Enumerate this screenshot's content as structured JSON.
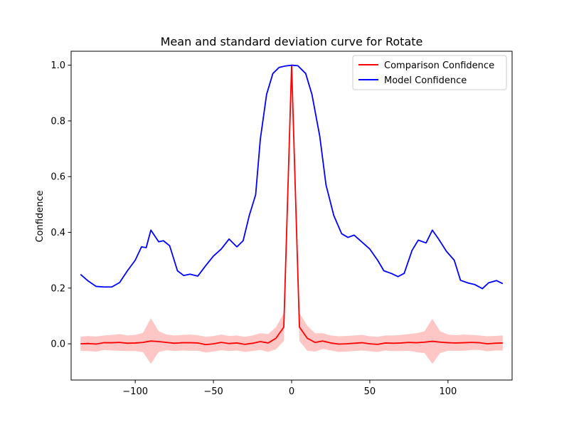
{
  "chart_data": {
    "type": "line",
    "title": "Mean and standard deviation curve for Rotate",
    "xlabel": "",
    "ylabel": "Confidence",
    "xlim": [
      -141,
      141
    ],
    "ylim": [
      -0.13,
      1.05
    ],
    "xticks": [
      -100,
      -50,
      0,
      50,
      100
    ],
    "xtick_labels": [
      "−100",
      "−50",
      "0",
      "50",
      "100"
    ],
    "yticks": [
      0.0,
      0.2,
      0.4,
      0.6,
      0.8,
      1.0
    ],
    "ytick_labels": [
      "0.0",
      "0.2",
      "0.4",
      "0.6",
      "0.8",
      "1.0"
    ],
    "grid": false,
    "legend_position": "top-right",
    "series": [
      {
        "name": "Comparison Confidence",
        "color": "#ff0000",
        "band_color": "#ffb3b3",
        "x": [
          -135,
          -130,
          -125,
          -120,
          -115,
          -110,
          -105,
          -100,
          -95,
          -90,
          -85,
          -80,
          -75,
          -70,
          -65,
          -60,
          -55,
          -50,
          -45,
          -40,
          -35,
          -30,
          -25,
          -20,
          -15,
          -10,
          -5,
          0,
          5,
          10,
          15,
          20,
          25,
          30,
          35,
          40,
          45,
          50,
          55,
          60,
          65,
          70,
          75,
          80,
          85,
          90,
          95,
          100,
          105,
          110,
          115,
          120,
          125,
          130,
          135
        ],
        "values": [
          0.0,
          0.001,
          -0.001,
          0.004,
          0.004,
          0.005,
          0.002,
          0.003,
          0.005,
          0.01,
          0.008,
          0.005,
          0.002,
          0.004,
          0.004,
          0.003,
          -0.003,
          0.0,
          0.005,
          0.001,
          0.003,
          -0.002,
          0.002,
          0.008,
          0.003,
          0.02,
          0.06,
          1.0,
          0.06,
          0.02,
          0.005,
          0.01,
          0.003,
          -0.001,
          0.0,
          0.002,
          0.004,
          0.0,
          -0.002,
          0.003,
          0.002,
          0.003,
          0.005,
          0.004,
          0.006,
          0.009,
          0.006,
          0.004,
          0.003,
          0.004,
          0.005,
          0.004,
          0.0,
          0.002,
          0.003
        ],
        "upper": [
          0.025,
          0.028,
          0.026,
          0.03,
          0.032,
          0.035,
          0.03,
          0.032,
          0.04,
          0.092,
          0.045,
          0.033,
          0.03,
          0.032,
          0.033,
          0.031,
          0.025,
          0.028,
          0.033,
          0.028,
          0.03,
          0.025,
          0.03,
          0.038,
          0.035,
          0.06,
          0.11,
          1.0,
          0.11,
          0.065,
          0.038,
          0.038,
          0.03,
          0.027,
          0.028,
          0.03,
          0.032,
          0.027,
          0.025,
          0.03,
          0.03,
          0.032,
          0.035,
          0.038,
          0.045,
          0.09,
          0.045,
          0.033,
          0.031,
          0.033,
          0.032,
          0.03,
          0.027,
          0.028,
          0.03
        ],
        "lower": [
          -0.025,
          -0.026,
          -0.028,
          -0.022,
          -0.024,
          -0.025,
          -0.026,
          -0.026,
          -0.03,
          -0.072,
          -0.029,
          -0.023,
          -0.026,
          -0.024,
          -0.025,
          -0.025,
          -0.031,
          -0.028,
          -0.023,
          -0.026,
          -0.024,
          -0.029,
          -0.026,
          -0.022,
          -0.029,
          -0.02,
          0.01,
          1.0,
          0.01,
          -0.025,
          -0.028,
          -0.018,
          -0.024,
          -0.029,
          -0.028,
          -0.026,
          -0.024,
          -0.027,
          -0.029,
          -0.024,
          -0.026,
          -0.026,
          -0.025,
          -0.03,
          -0.033,
          -0.072,
          -0.033,
          -0.025,
          -0.025,
          -0.025,
          -0.022,
          -0.022,
          -0.027,
          -0.024,
          -0.024
        ]
      },
      {
        "name": "Model Confidence",
        "color": "#0000ff",
        "x": [
          -135,
          -130,
          -125,
          -120,
          -115,
          -110,
          -105,
          -100,
          -96,
          -93,
          -90,
          -85,
          -82,
          -78,
          -73,
          -69,
          -65,
          -60,
          -55,
          -50,
          -45,
          -40,
          -35,
          -31,
          -27,
          -23,
          -20,
          -16,
          -12,
          -8,
          -4,
          0,
          4,
          9,
          13,
          18,
          22,
          27,
          32,
          36,
          40,
          45,
          50,
          55,
          59,
          64,
          68,
          72,
          77,
          81,
          86,
          90,
          94,
          99,
          104,
          108,
          113,
          117,
          122,
          126,
          131,
          135
        ],
        "values": [
          0.249,
          0.225,
          0.206,
          0.204,
          0.204,
          0.22,
          0.262,
          0.3,
          0.348,
          0.345,
          0.408,
          0.366,
          0.37,
          0.352,
          0.262,
          0.245,
          0.25,
          0.243,
          0.28,
          0.315,
          0.34,
          0.376,
          0.348,
          0.37,
          0.462,
          0.535,
          0.735,
          0.895,
          0.97,
          0.992,
          0.997,
          1.0,
          0.998,
          0.97,
          0.895,
          0.745,
          0.57,
          0.46,
          0.395,
          0.382,
          0.39,
          0.365,
          0.34,
          0.3,
          0.262,
          0.252,
          0.241,
          0.253,
          0.335,
          0.372,
          0.362,
          0.408,
          0.376,
          0.332,
          0.3,
          0.228,
          0.218,
          0.213,
          0.198,
          0.219,
          0.227,
          0.216
        ]
      }
    ]
  }
}
